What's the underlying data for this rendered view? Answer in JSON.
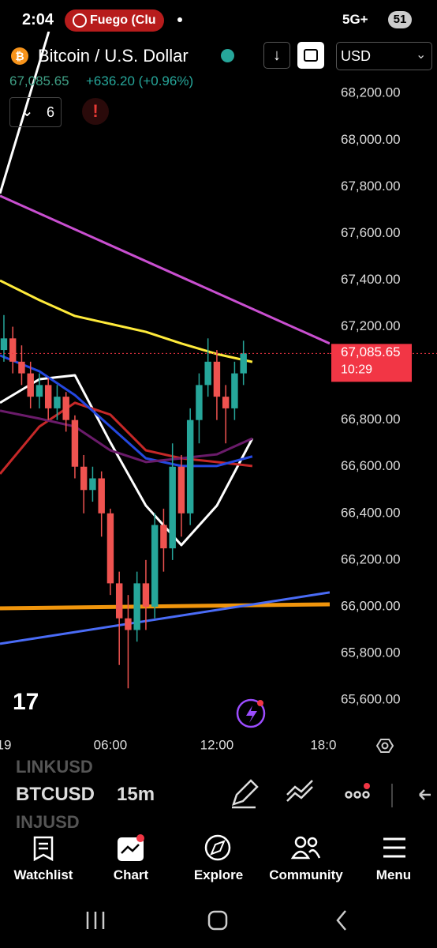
{
  "status_bar": {
    "time": "2:04",
    "app_pill": "Fuego (Clu",
    "network": "5G+",
    "battery": "51"
  },
  "header": {
    "symbol": "Bitcoin / U.S. Dollar",
    "price": "67,085.65",
    "change": "+636.20 (+0.96%)",
    "indicators_count": "6",
    "currency": "USD"
  },
  "chart_data": {
    "type": "candlestick",
    "x": [
      0,
      0.5,
      1,
      1.5,
      2,
      2.5,
      3,
      3.5,
      4,
      4.5,
      5,
      5.5,
      6,
      6.5,
      7,
      7.5,
      8,
      8.5,
      9,
      9.5,
      10,
      10.5,
      11,
      11.5,
      12,
      12.5,
      13,
      13.5
    ],
    "open": [
      67100,
      67150,
      67050,
      67000,
      66900,
      66950,
      66850,
      66900,
      66800,
      66600,
      66500,
      66550,
      66400,
      66100,
      65950,
      65900,
      66100,
      66000,
      66350,
      66250,
      66600,
      66400,
      66800,
      66950,
      67050,
      66900,
      66850,
      67000
    ],
    "high": [
      67250,
      67200,
      67120,
      67050,
      67000,
      66980,
      66950,
      66920,
      66820,
      66650,
      66600,
      66580,
      66420,
      66150,
      66050,
      66150,
      66200,
      66400,
      66420,
      66700,
      66650,
      66850,
      67000,
      67150,
      67100,
      66950,
      67050,
      67140
    ],
    "low": [
      67050,
      67000,
      66950,
      66850,
      66850,
      66800,
      66800,
      66750,
      66550,
      66400,
      66450,
      66300,
      66050,
      65750,
      65650,
      65850,
      65900,
      65950,
      66150,
      66200,
      66300,
      66350,
      66700,
      66900,
      66800,
      66700,
      66800,
      66950
    ],
    "close": [
      67150,
      67050,
      67000,
      66900,
      66950,
      66850,
      66900,
      66800,
      66600,
      66500,
      66550,
      66400,
      66100,
      65950,
      65900,
      66100,
      66000,
      66350,
      66250,
      66600,
      66400,
      66800,
      66950,
      67050,
      66900,
      66850,
      67000,
      67085.65
    ],
    "up_color": "#26a69a",
    "down_color": "#ef5350",
    "series": [
      {
        "color": "#ffeb3b",
        "x": [
          -0.22,
          2,
          4,
          6,
          8,
          10,
          12,
          14
        ],
        "values": [
          67398,
          67314,
          67246,
          67212,
          67178,
          67128,
          67083,
          67049
        ]
      },
      {
        "color": "#ffffff",
        "x": [
          -0.22,
          2,
          4,
          6,
          8,
          10,
          12,
          14
        ],
        "values": [
          66874,
          66975,
          66992,
          66704,
          66433,
          66264,
          66433,
          66721
        ]
      },
      {
        "color": "#c62828",
        "x": [
          -0.22,
          2,
          4,
          6,
          8,
          10,
          12,
          14
        ],
        "values": [
          66569,
          66772,
          66874,
          66823,
          66670,
          66636,
          66620,
          66603
        ]
      },
      {
        "color": "#2448e0",
        "x": [
          -0.22,
          2,
          4,
          6,
          8,
          10,
          12,
          14
        ],
        "values": [
          67077,
          67009,
          66907,
          66772,
          66636,
          66603,
          66603,
          66644
        ]
      },
      {
        "color": "#6a1b6a",
        "x": [
          -0.22,
          2,
          4,
          6,
          8,
          10,
          12,
          14
        ],
        "values": [
          66840,
          66806,
          66772,
          66670,
          66620,
          66636,
          66653,
          66721
        ]
      },
      {
        "color": "#f0950c",
        "x": [
          -0.22,
          18.36
        ],
        "values": [
          65993,
          66010
        ]
      },
      {
        "color": "#c94fd0",
        "x": [
          -0.22,
          18.36
        ],
        "values": [
          67761,
          67128
        ]
      },
      {
        "color": "#4a6cf7",
        "x": [
          -0.22,
          18.36
        ],
        "values": [
          65841,
          66061
        ]
      },
      {
        "color": "#ffffff",
        "x": [
          -0.22,
          2.53
        ],
        "values": [
          67771,
          68465
        ]
      }
    ],
    "xlim": [
      -0.22,
      18.36
    ],
    "ylim": [
      65485,
      68465
    ],
    "xticks": [
      {
        "value": 0,
        "label": "19"
      },
      {
        "value": 6,
        "label": "06:00"
      },
      {
        "value": 12,
        "label": "12:00"
      },
      {
        "value": 18,
        "label": "18:0"
      }
    ],
    "yticks": [
      {
        "value": 68200,
        "label": "68,200.00"
      },
      {
        "value": 68000,
        "label": "68,000.00"
      },
      {
        "value": 67800,
        "label": "67,800.00"
      },
      {
        "value": 67600,
        "label": "67,600.00"
      },
      {
        "value": 67400,
        "label": "67,400.00"
      },
      {
        "value": 67200,
        "label": "67,200.00"
      },
      {
        "value": 66800,
        "label": "66,800.00"
      },
      {
        "value": 66600,
        "label": "66,600.00"
      },
      {
        "value": 66400,
        "label": "66,400.00"
      },
      {
        "value": 66200,
        "label": "66,200.00"
      },
      {
        "value": 66000,
        "label": "66,000.00"
      },
      {
        "value": 65800,
        "label": "65,800.00"
      },
      {
        "value": 65600,
        "label": "65,600.00"
      }
    ],
    "grid": false,
    "price_label": "67,085.65",
    "countdown": "10:29",
    "price_color": "#f23645"
  },
  "toolbar": {
    "symbols": [
      "LINKUSD",
      "BTCUSD",
      "INJUSD"
    ],
    "interval": "15m"
  },
  "nav": [
    "Watchlist",
    "Chart",
    "Explore",
    "Community",
    "Menu"
  ]
}
